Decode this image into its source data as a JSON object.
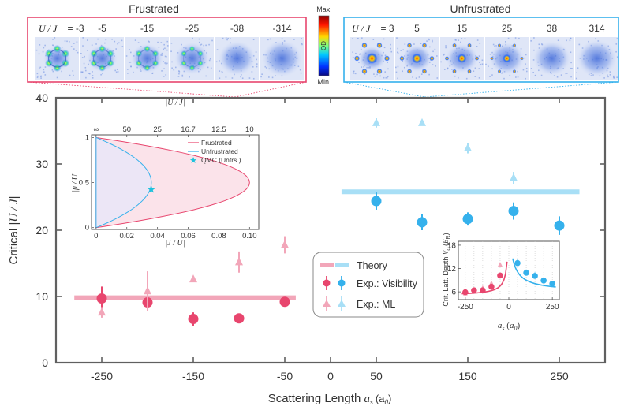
{
  "chart_data": {
    "type": "scatter",
    "xlabel": "Scattering Length",
    "xlabel_symbol": "a_s (a_0)",
    "xlabel_var": "a",
    "xlabel_sub": "s",
    "xlabel_unit": "(a",
    "xlabel_unit_sub": "0",
    "xlabel_unit_close": ")",
    "ylabel_prefix": "Critical |",
    "ylabel_var": "U / J",
    "ylabel_suffix": "|",
    "xlim": [
      -300,
      300
    ],
    "ylim": [
      0,
      40
    ],
    "xticks": [
      "-250",
      "-150",
      "-50",
      "0",
      "50",
      "150",
      "250"
    ],
    "xtick_values": [
      -250,
      -150,
      -50,
      0,
      50,
      150,
      250
    ],
    "yticks": [
      "0",
      "10",
      "20",
      "30",
      "40"
    ],
    "ytick_values": [
      0,
      10,
      20,
      30,
      40
    ],
    "colors": {
      "frustrated": "#e8466e",
      "unfrustrated": "#35b1ec",
      "theory_frustrated": "#f2a6b9",
      "theory_unfrustrated": "#a8dff6"
    },
    "series": [
      {
        "name": "Theory (Frustrated)",
        "kind": "line",
        "x": [
          -280,
          -38
        ],
        "y": [
          9.8,
          9.8
        ]
      },
      {
        "name": "Theory (Unfrustrated)",
        "kind": "line",
        "x": [
          12,
          272
        ],
        "y": [
          25.8,
          25.8
        ]
      },
      {
        "name": "Exp.: Visibility (Frustrated)",
        "kind": "circle",
        "x": [
          -250,
          -200,
          -150,
          -100,
          -50
        ],
        "y": [
          9.7,
          9.1,
          6.6,
          6.7,
          9.2
        ],
        "err": [
          1.8,
          1.3,
          1.0,
          0,
          0
        ]
      },
      {
        "name": "Exp.: Visibility (Unfrustrated)",
        "kind": "circle",
        "x": [
          50,
          100,
          150,
          200,
          250
        ],
        "y": [
          24.4,
          21.2,
          21.7,
          22.9,
          20.7
        ],
        "err": [
          1.3,
          1.2,
          1.0,
          1.3,
          1.4
        ]
      },
      {
        "name": "Exp.: ML (Frustrated)",
        "kind": "triangle",
        "x": [
          -250,
          -200,
          -150,
          -100,
          -50
        ],
        "y": [
          7.6,
          10.8,
          12.6,
          15.2,
          17.8
        ],
        "err": [
          0.8,
          3.0,
          0,
          1.6,
          1.3
        ]
      },
      {
        "name": "Exp.: ML (Unfrustrated)",
        "kind": "triangle",
        "x": [
          50,
          100,
          150,
          200
        ],
        "y": [
          36.2,
          36.2,
          32.4,
          27.9
        ],
        "err": [
          0.7,
          0,
          0.8,
          0.9
        ]
      }
    ],
    "legend": {
      "position": "center-right",
      "theory": "Theory",
      "visibility": "Exp.: Visibility",
      "ml": "Exp.: ML"
    },
    "top_panel": {
      "frustrated_title": "Frustrated",
      "unfrustrated_title": "Unfrustrated",
      "frustrated_label_prefix": "U / J",
      "frustrated_label_eq": " = ",
      "frustrated_values": [
        "-3",
        "-5",
        "-15",
        "-25",
        "-38",
        "-314"
      ],
      "unfrustrated_values": [
        "3",
        "5",
        "15",
        "25",
        "38",
        "314"
      ],
      "colorbar_max": "Max.",
      "colorbar_min": "Min.",
      "colorbar_label": "OD"
    },
    "inset_phase": {
      "type": "area",
      "top_axis_label": "|U / J|",
      "bottom_axis_label": "|J / U|",
      "y_axis_label": "|μ / U|",
      "xticks": [
        "0",
        "0.02",
        "0.04",
        "0.06",
        "0.08",
        "0.10"
      ],
      "xtick_values": [
        0,
        0.02,
        0.04,
        0.06,
        0.08,
        0.1
      ],
      "top_ticks": [
        "∞",
        "50",
        "25",
        "16.7",
        "12.5",
        "10"
      ],
      "yticks": [
        "0",
        "0.5",
        "1"
      ],
      "ytick_values": [
        0,
        0.5,
        1
      ],
      "xlim": [
        -0.003,
        0.106
      ],
      "ylim": [
        -0.02,
        1.03
      ],
      "legend": {
        "frustrated": "Frustrated",
        "unfrustrated": "Unfrustrated",
        "qmc": "QMC (Unfrs.)"
      },
      "frustrated_tip": [
        0.1,
        0.5
      ],
      "unfrustrated_tip": [
        0.036,
        0.5
      ],
      "qmc_point": [
        0.036,
        0.42
      ]
    },
    "inset_depth": {
      "type": "scatter",
      "y_label_prefix": "Crit. Latt. Depth ",
      "y_label_var": "V",
      "y_label_sub": "c",
      "y_label_unit_open": " (",
      "y_label_unit_var": "E",
      "y_label_unit_sub": "R",
      "y_label_unit_close": ")",
      "x_label": "a_s (a_0)",
      "xticks": [
        "-250",
        "0",
        "250"
      ],
      "xtick_values": [
        -250,
        0,
        250
      ],
      "yticks": [
        "6",
        "12",
        "18"
      ],
      "ytick_values": [
        6,
        12,
        18
      ],
      "xlim": [
        -290,
        290
      ],
      "ylim": [
        4,
        19
      ],
      "frustrated_circles": {
        "x": [
          -250,
          -200,
          -150,
          -100,
          -50
        ],
        "y": [
          5.9,
          6.4,
          6.4,
          7.3,
          10.2
        ]
      },
      "frustrated_triangles": {
        "x": [
          -250,
          -200,
          -150,
          -100,
          -50
        ],
        "y": [
          5.6,
          6.3,
          7.0,
          8.2,
          13.0
        ]
      },
      "unfrustrated_circles": {
        "x": [
          50,
          100,
          150,
          200,
          250
        ],
        "y": [
          13.4,
          10.9,
          10.1,
          8.9,
          8.1
        ]
      },
      "unfrustrated_triangles": {
        "x": [
          50,
          100,
          150,
          200
        ],
        "y": [
          13.9,
          11.2,
          10.6,
          9.0
        ]
      }
    }
  }
}
